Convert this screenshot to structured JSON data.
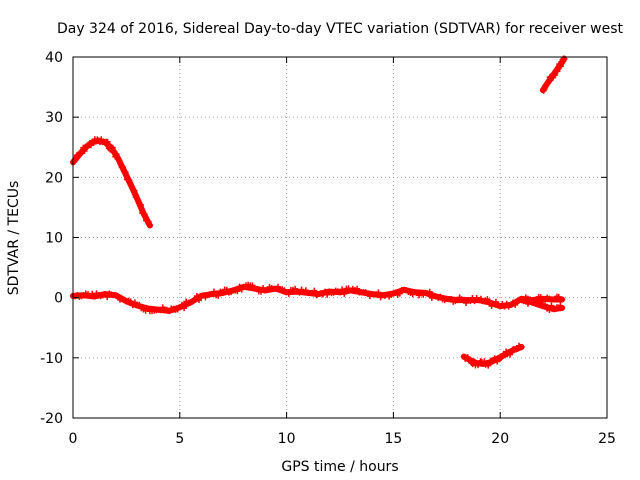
{
  "chart_data": {
    "type": "scatter",
    "title": "Day 324 of 2016, Sidereal Day-to-day VTEC variation (SDTVAR) for receiver west",
    "xlabel": "GPS time / hours",
    "ylabel": "SDTVAR / TECUs",
    "xlim": [
      0,
      25
    ],
    "ylim": [
      -20,
      40
    ],
    "xticks": [
      0,
      5,
      10,
      15,
      20,
      25
    ],
    "yticks": [
      -20,
      -10,
      0,
      10,
      20,
      30,
      40
    ],
    "grid": true,
    "legend": "none",
    "marker_color": "#ff0000",
    "series": [
      {
        "name": "upper-arc",
        "points": [
          [
            0.0,
            22.5
          ],
          [
            0.3,
            23.8
          ],
          [
            0.6,
            25.0
          ],
          [
            0.9,
            25.8
          ],
          [
            1.2,
            26.1
          ],
          [
            1.5,
            25.8
          ],
          [
            1.8,
            24.9
          ],
          [
            2.1,
            23.2
          ],
          [
            2.4,
            21.0
          ],
          [
            2.7,
            18.8
          ],
          [
            3.0,
            16.5
          ],
          [
            3.3,
            14.0
          ],
          [
            3.6,
            12.0
          ]
        ]
      },
      {
        "name": "main-band",
        "points": [
          [
            0.0,
            0.3
          ],
          [
            0.5,
            0.4
          ],
          [
            1.0,
            0.2
          ],
          [
            1.5,
            0.6
          ],
          [
            2.0,
            0.4
          ],
          [
            2.5,
            -0.6
          ],
          [
            3.0,
            -1.3
          ],
          [
            3.5,
            -1.8
          ],
          [
            4.0,
            -2.0
          ],
          [
            4.5,
            -2.2
          ],
          [
            5.0,
            -1.6
          ],
          [
            5.5,
            -0.8
          ],
          [
            6.0,
            0.3
          ],
          [
            6.5,
            0.6
          ],
          [
            7.0,
            0.8
          ],
          [
            7.5,
            1.2
          ],
          [
            8.0,
            1.8
          ],
          [
            8.5,
            1.5
          ],
          [
            9.0,
            1.2
          ],
          [
            9.5,
            1.5
          ],
          [
            10.0,
            0.9
          ],
          [
            10.5,
            1.0
          ],
          [
            11.0,
            0.8
          ],
          [
            11.5,
            0.6
          ],
          [
            12.0,
            1.0
          ],
          [
            12.5,
            0.9
          ],
          [
            13.0,
            1.2
          ],
          [
            13.5,
            0.9
          ],
          [
            14.0,
            0.6
          ],
          [
            14.5,
            0.4
          ],
          [
            15.0,
            0.7
          ],
          [
            15.5,
            1.3
          ],
          [
            16.0,
            0.9
          ],
          [
            16.5,
            0.8
          ],
          [
            17.0,
            0.2
          ],
          [
            17.5,
            -0.2
          ],
          [
            18.0,
            -0.4
          ],
          [
            18.5,
            -0.4
          ],
          [
            19.0,
            -0.4
          ],
          [
            19.5,
            -0.8
          ],
          [
            20.0,
            -1.4
          ],
          [
            20.5,
            -1.2
          ],
          [
            21.0,
            -0.2
          ],
          [
            21.5,
            -0.4
          ],
          [
            22.0,
            -0.2
          ],
          [
            22.5,
            -0.3
          ],
          [
            22.9,
            -0.3
          ]
        ]
      },
      {
        "name": "lower-band",
        "points": [
          [
            21.0,
            -0.4
          ],
          [
            21.5,
            -0.8
          ],
          [
            22.0,
            -1.4
          ],
          [
            22.5,
            -1.9
          ],
          [
            22.9,
            -1.7
          ]
        ]
      },
      {
        "name": "lower-arc",
        "points": [
          [
            18.3,
            -9.8
          ],
          [
            18.6,
            -10.4
          ],
          [
            18.9,
            -10.9
          ],
          [
            19.2,
            -11.0
          ],
          [
            19.5,
            -10.8
          ],
          [
            19.8,
            -10.3
          ],
          [
            20.1,
            -9.7
          ],
          [
            20.4,
            -9.1
          ],
          [
            20.7,
            -8.6
          ],
          [
            21.0,
            -8.2
          ]
        ]
      },
      {
        "name": "upper-right",
        "points": [
          [
            22.0,
            34.5
          ],
          [
            22.2,
            35.6
          ],
          [
            22.4,
            36.6
          ],
          [
            22.6,
            37.6
          ],
          [
            22.8,
            38.6
          ],
          [
            23.0,
            39.7
          ]
        ]
      }
    ]
  }
}
